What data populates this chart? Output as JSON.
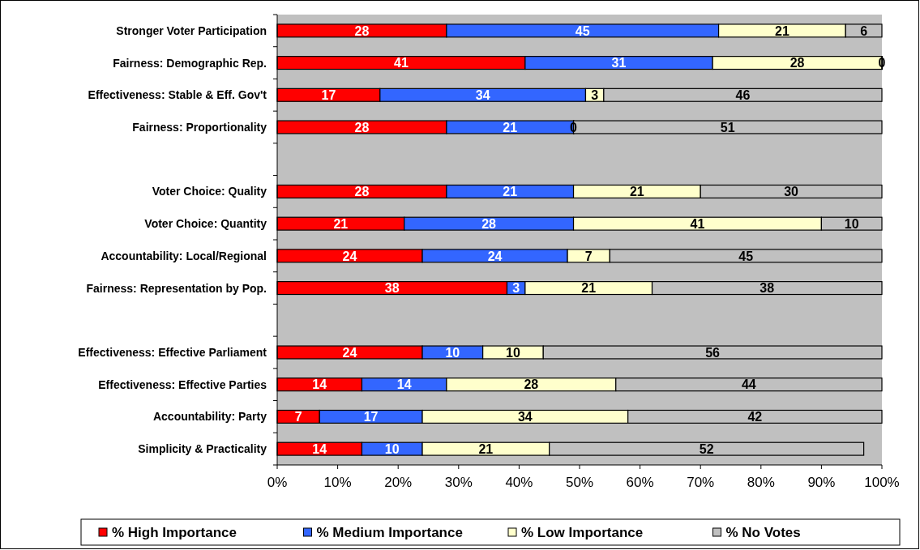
{
  "chart_data": {
    "type": "bar",
    "orientation": "horizontal",
    "stacked": true,
    "categories": [
      "Stronger Voter Participation",
      "Fairness: Demographic Rep.",
      "Effectiveness: Stable & Eff. Gov't",
      "Fairness: Proportionality",
      null,
      "Voter Choice: Quality",
      "Voter Choice: Quantity",
      "Accountability: Local/Regional",
      "Fairness: Representation by Pop.",
      null,
      "Effectiveness: Effective Parliament",
      "Effectiveness: Effective Parties",
      "Accountability: Party",
      "Simplicity & Practicality"
    ],
    "series": [
      {
        "name": "% High Importance",
        "color": "#ff0000",
        "values": [
          28,
          41,
          17,
          28,
          null,
          28,
          21,
          24,
          38,
          null,
          24,
          14,
          7,
          14
        ]
      },
      {
        "name": "% Medium Importance",
        "color": "#3366ff",
        "values": [
          45,
          31,
          34,
          21,
          null,
          21,
          28,
          24,
          3,
          null,
          10,
          14,
          17,
          10
        ]
      },
      {
        "name": "% Low Importance",
        "color": "#ffffcc",
        "values": [
          21,
          28,
          3,
          0,
          null,
          21,
          41,
          7,
          21,
          null,
          10,
          28,
          34,
          21
        ]
      },
      {
        "name": "% No Votes",
        "color": "#c0c0c0",
        "values": [
          6,
          0,
          46,
          51,
          null,
          30,
          10,
          45,
          38,
          null,
          56,
          44,
          42,
          52
        ]
      }
    ],
    "xlim": [
      0,
      100
    ],
    "xticks": [
      {
        "value": 0,
        "label": "0%"
      },
      {
        "value": 10,
        "label": "10%"
      },
      {
        "value": 20,
        "label": "20%"
      },
      {
        "value": 30,
        "label": "30%"
      },
      {
        "value": 40,
        "label": "40%"
      },
      {
        "value": 50,
        "label": "50%"
      },
      {
        "value": 60,
        "label": "60%"
      },
      {
        "value": 70,
        "label": "70%"
      },
      {
        "value": 80,
        "label": "80%"
      },
      {
        "value": 90,
        "label": "90%"
      },
      {
        "value": 100,
        "label": "100%"
      }
    ],
    "data_labels": true,
    "grid": false,
    "legend": "bottom"
  }
}
